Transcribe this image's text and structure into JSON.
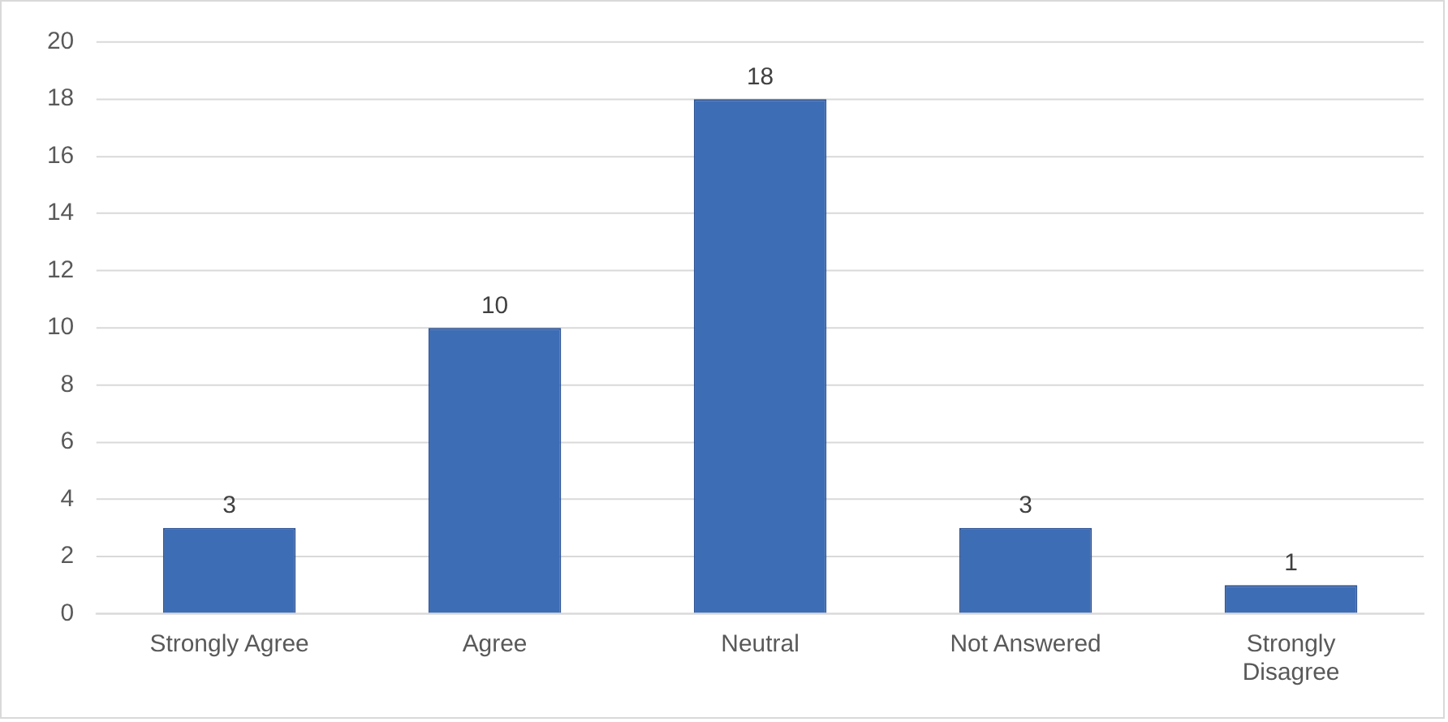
{
  "chart_data": {
    "type": "bar",
    "categories": [
      "Strongly Agree",
      "Agree",
      "Neutral",
      "Not Answered",
      "Strongly Disagree"
    ],
    "values": [
      3,
      10,
      18,
      3,
      1
    ],
    "color": "#3d6db5",
    "ylim": [
      0,
      20
    ],
    "yticks": [
      0,
      2,
      4,
      6,
      8,
      10,
      12,
      14,
      16,
      18,
      20
    ],
    "grid": "y",
    "data_labels": true,
    "legend": false
  }
}
